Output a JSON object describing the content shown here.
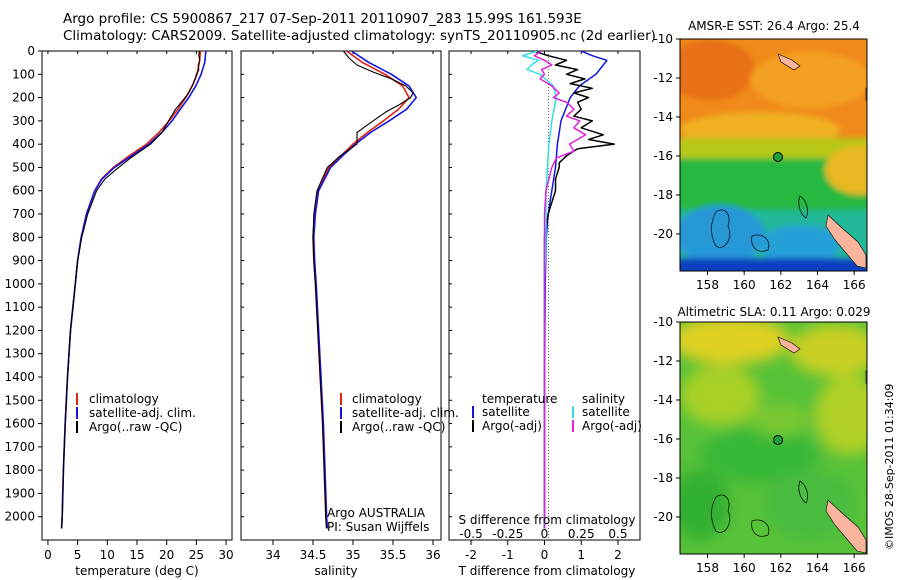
{
  "header": {
    "line1": "Argo profile: CS 5900867_217 07-Sep-2011 20110907_283 15.99S 161.593E",
    "line2": "Climatology: CARS2009. Satellite-adjusted climatology: synTS_20110905.nc (2d earlier)"
  },
  "credit": "©IMOS 28-Sep-2011 01:34:09",
  "colors": {
    "climatology": "#e02010",
    "satellite": "#1515e0",
    "argo": "#000000",
    "argo_adj_sal": "#e020e0",
    "sat_sal": "#30e0e8"
  },
  "chart_data": [
    {
      "type": "line",
      "xlabel": "temperature (deg C)",
      "xlim": [
        -1,
        31
      ],
      "xticks": [
        0,
        5,
        10,
        15,
        20,
        25,
        30
      ],
      "ylim": [
        2100,
        0
      ],
      "yticks": [
        0,
        100,
        200,
        300,
        400,
        500,
        600,
        700,
        800,
        900,
        1000,
        1100,
        1200,
        1300,
        1400,
        1500,
        1600,
        1700,
        1800,
        1900,
        2000
      ],
      "legend": [
        "climatology",
        "satellite-adj. clim.",
        "Argo(..raw -QC)"
      ],
      "series": [
        {
          "name": "climatology",
          "depth": [
            0,
            50,
            100,
            150,
            200,
            250,
            300,
            350,
            400,
            450,
            500,
            550,
            600,
            700,
            800,
            900,
            1000,
            1200,
            1400,
            1600,
            1800,
            2000,
            2050
          ],
          "values": [
            25.7,
            25.5,
            25.1,
            24.3,
            23.2,
            21.9,
            20.4,
            18.7,
            16.6,
            13.7,
            11.0,
            9.0,
            7.9,
            6.5,
            5.6,
            5.0,
            4.6,
            3.8,
            3.3,
            2.9,
            2.6,
            2.4,
            2.3
          ]
        },
        {
          "name": "satellite-adj. clim.",
          "depth": [
            0,
            50,
            100,
            150,
            200,
            250,
            300,
            350,
            400,
            450,
            500,
            550,
            600,
            700,
            800,
            900,
            1000,
            1200,
            1400,
            1600,
            1800,
            2000,
            2050
          ],
          "values": [
            26.6,
            26.4,
            25.8,
            24.9,
            23.7,
            22.3,
            20.9,
            19.2,
            17.0,
            14.1,
            11.2,
            9.1,
            7.9,
            6.5,
            5.6,
            5.0,
            4.6,
            3.8,
            3.3,
            2.9,
            2.6,
            2.4,
            2.3
          ]
        },
        {
          "name": "Argo(..raw -QC)",
          "depth": [
            0,
            20,
            40,
            60,
            80,
            100,
            120,
            140,
            160,
            180,
            200,
            250,
            300,
            350,
            400,
            430,
            460,
            500,
            550,
            600,
            700,
            800,
            900,
            1000,
            1200,
            1400,
            1600,
            1800,
            2000,
            2050
          ],
          "values": [
            25.5,
            25.4,
            25.6,
            25.3,
            25.4,
            25.0,
            24.8,
            24.5,
            24.1,
            23.7,
            23.1,
            21.5,
            20.3,
            19.2,
            17.3,
            15.6,
            13.9,
            11.9,
            9.6,
            8.2,
            6.7,
            5.7,
            5.0,
            4.6,
            3.8,
            3.3,
            2.9,
            2.6,
            2.4,
            2.3
          ]
        }
      ]
    },
    {
      "type": "line",
      "xlabel": "salinity",
      "xlim": [
        33.6,
        36.1
      ],
      "xticks": [
        34,
        34.5,
        35,
        35.5,
        36
      ],
      "ylim": [
        2100,
        0
      ],
      "legend": [
        "climatology",
        "satellite-adj. clim.",
        "Argo(..raw -QC)"
      ],
      "annotation": [
        "Argo AUSTRALIA",
        "PI: Susan Wijffels"
      ],
      "series": [
        {
          "name": "climatology",
          "depth": [
            0,
            50,
            100,
            150,
            200,
            250,
            300,
            350,
            400,
            450,
            500,
            600,
            700,
            800,
            900,
            1000,
            1200,
            1400,
            1600,
            1800,
            2000,
            2050
          ],
          "values": [
            34.92,
            35.12,
            35.4,
            35.62,
            35.7,
            35.57,
            35.38,
            35.18,
            35.0,
            34.85,
            34.7,
            34.56,
            34.52,
            34.5,
            34.51,
            34.53,
            34.56,
            34.59,
            34.62,
            34.64,
            34.66,
            34.67
          ]
        },
        {
          "name": "satellite-adj. clim.",
          "depth": [
            0,
            50,
            100,
            150,
            200,
            250,
            300,
            350,
            400,
            450,
            500,
            600,
            700,
            800,
            900,
            1000,
            1200,
            1400,
            1600,
            1800,
            2000,
            2050
          ],
          "values": [
            34.98,
            35.2,
            35.48,
            35.7,
            35.79,
            35.67,
            35.45,
            35.22,
            35.03,
            34.87,
            34.72,
            34.57,
            34.53,
            34.51,
            34.52,
            34.54,
            34.57,
            34.6,
            34.63,
            34.65,
            34.67,
            34.68
          ]
        },
        {
          "name": "Argo(..raw -QC)",
          "depth": [
            0,
            30,
            60,
            90,
            120,
            150,
            180,
            200,
            230,
            260,
            300,
            350,
            400,
            450,
            500,
            600,
            700,
            800,
            900,
            1000,
            1200,
            1400,
            1600,
            1800,
            2000,
            2050
          ],
          "values": [
            34.88,
            34.95,
            35.05,
            35.25,
            35.48,
            35.66,
            35.75,
            35.72,
            35.58,
            35.42,
            35.25,
            35.05,
            35.05,
            34.84,
            34.68,
            34.55,
            34.51,
            34.5,
            34.51,
            34.53,
            34.56,
            34.59,
            34.62,
            34.64,
            34.66,
            34.67
          ]
        }
      ]
    },
    {
      "type": "line",
      "xlabel": "T difference from climatology",
      "xlabel_top": "S difference from climatology",
      "xlim": [
        -2.6,
        2.6
      ],
      "xticks": [
        -2,
        -1,
        0,
        1,
        2
      ],
      "xticks_s": [
        -0.5,
        -0.25,
        0,
        0.25,
        0.5
      ],
      "ylim": [
        2100,
        0
      ],
      "legend_temperature": [
        "temperature",
        "satellite",
        "Argo(-adj)"
      ],
      "legend_salinity": [
        "salinity",
        "satellite",
        "Argo(-adj)"
      ],
      "series": [
        {
          "name": "temperature satellite",
          "depth": [
            0,
            20,
            40,
            60,
            80,
            100,
            150,
            200,
            300,
            400,
            500,
            600,
            700,
            800,
            1000,
            1500,
            2000,
            2050
          ],
          "values": [
            1.0,
            1.3,
            1.7,
            1.6,
            1.5,
            1.4,
            0.95,
            0.7,
            0.45,
            0.35,
            0.3,
            0.2,
            0.1,
            0.05,
            0.02,
            0.0,
            0.0,
            0.0
          ]
        },
        {
          "name": "temperature Argo(-adj)",
          "depth": [
            0,
            20,
            40,
            60,
            80,
            100,
            120,
            140,
            160,
            180,
            200,
            220,
            250,
            280,
            300,
            330,
            360,
            380,
            400,
            420,
            450,
            480,
            500,
            550,
            600,
            650,
            700,
            750,
            800,
            900,
            1000,
            1500,
            2000,
            2050
          ],
          "values": [
            -0.3,
            0.1,
            0.6,
            0.3,
            0.9,
            0.6,
            1.1,
            0.7,
            1.3,
            0.8,
            1.2,
            0.9,
            1.0,
            0.8,
            1.3,
            1.0,
            1.6,
            1.2,
            1.9,
            0.9,
            0.6,
            0.4,
            0.4,
            0.3,
            0.3,
            0.2,
            0.1,
            0.05,
            0.0,
            0.0,
            0.0,
            0.0,
            0.0,
            0.0
          ]
        },
        {
          "name": "salinity satellite",
          "depth": [
            0,
            20,
            40,
            60,
            80,
            100,
            150,
            200,
            300,
            400,
            500,
            600,
            700,
            800,
            1000,
            1500,
            2000,
            2050
          ],
          "values": [
            -0.05,
            -0.15,
            -0.04,
            -0.09,
            -0.12,
            -0.03,
            0.06,
            0.08,
            0.05,
            0.03,
            0.02,
            0.01,
            0.01,
            0.01,
            0.0,
            0.0,
            0.0,
            0.0
          ]
        },
        {
          "name": "salinity Argo(-adj)",
          "depth": [
            0,
            20,
            40,
            60,
            80,
            100,
            120,
            150,
            180,
            200,
            220,
            250,
            280,
            300,
            330,
            360,
            400,
            430,
            460,
            500,
            550,
            600,
            700,
            800,
            1000,
            1500,
            2000,
            2050
          ],
          "values": [
            -0.02,
            -0.07,
            0.0,
            0.05,
            -0.02,
            0.0,
            -0.03,
            0.05,
            0.1,
            0.06,
            0.15,
            0.2,
            0.15,
            0.24,
            0.2,
            0.28,
            0.17,
            0.2,
            0.08,
            0.05,
            0.03,
            0.01,
            0.0,
            0.0,
            0.0,
            0.0,
            0.0,
            0.0
          ]
        }
      ]
    },
    {
      "type": "heatmap",
      "title": "AMSR-E SST: 26.4 Argo: 25.4",
      "xticks": [
        158,
        160,
        162,
        164,
        166
      ],
      "yticks": [
        -10,
        -12,
        -14,
        -16,
        -18,
        -20
      ],
      "xlim": [
        156.5,
        166.7
      ],
      "ylim": [
        -21.9,
        -10
      ],
      "marker": {
        "lon": 161.593,
        "lat": -15.99
      }
    },
    {
      "type": "heatmap",
      "title": "Altimetric SLA: 0.11 Argo: 0.029",
      "xticks": [
        158,
        160,
        162,
        164,
        166
      ],
      "yticks": [
        -10,
        -12,
        -14,
        -16,
        -18,
        -20
      ],
      "xlim": [
        156.5,
        166.7
      ],
      "ylim": [
        -21.9,
        -10
      ],
      "marker": {
        "lon": 161.593,
        "lat": -15.99
      }
    }
  ]
}
